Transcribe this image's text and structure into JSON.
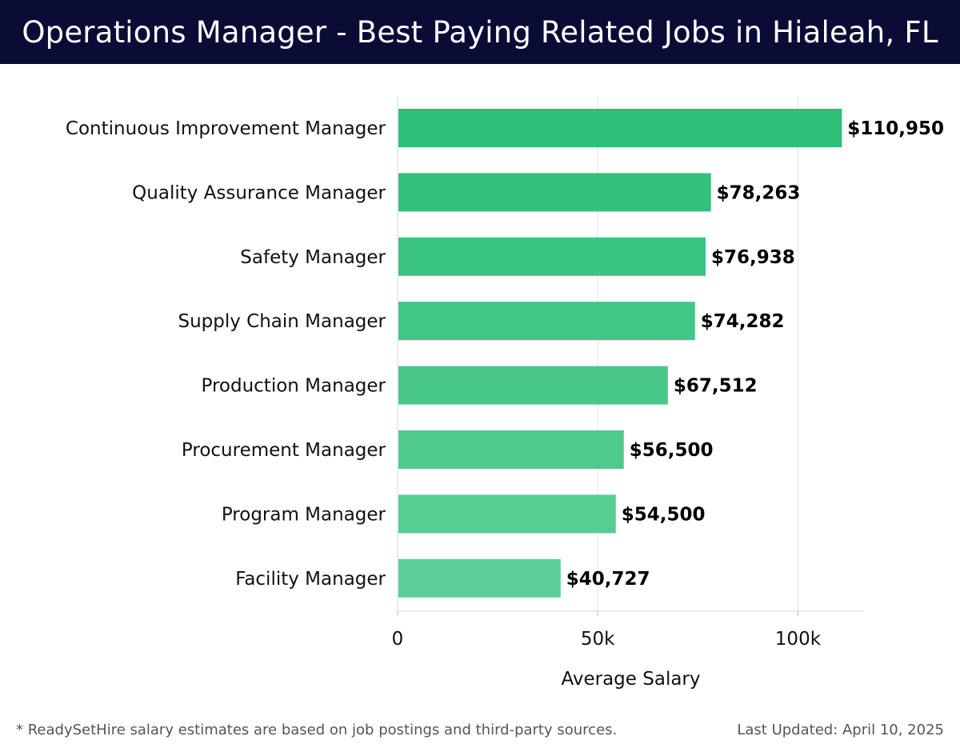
{
  "header": {
    "title": "Operations Manager - Best Paying Related Jobs in Hialeah, FL"
  },
  "footer": {
    "note": "* ReadySetHire salary estimates are based on job postings and third-party sources.",
    "updated": "Last Updated: April 10, 2025"
  },
  "colors": {
    "header_bg": "#0b0c36",
    "bar_top": "#2bbf78",
    "bar_bottom": "#5ccf98"
  },
  "chart_data": {
    "type": "bar",
    "orientation": "horizontal",
    "categories": [
      "Continuous Improvement Manager",
      "Quality Assurance Manager",
      "Safety Manager",
      "Supply Chain Manager",
      "Production Manager",
      "Procurement Manager",
      "Program Manager",
      "Facility Manager"
    ],
    "values": [
      110950,
      78263,
      76938,
      74282,
      67512,
      56500,
      54500,
      40727
    ],
    "value_labels": [
      "$110,950",
      "$78,263",
      "$76,938",
      "$74,282",
      "$67,512",
      "$56,500",
      "$54,500",
      "$40,727"
    ],
    "xlabel": "Average Salary",
    "ylabel": "",
    "xlim": [
      0,
      116500
    ],
    "xticks": [
      0,
      50000,
      100000
    ],
    "xtick_labels": [
      "0",
      "50k",
      "100k"
    ],
    "grid": true
  }
}
